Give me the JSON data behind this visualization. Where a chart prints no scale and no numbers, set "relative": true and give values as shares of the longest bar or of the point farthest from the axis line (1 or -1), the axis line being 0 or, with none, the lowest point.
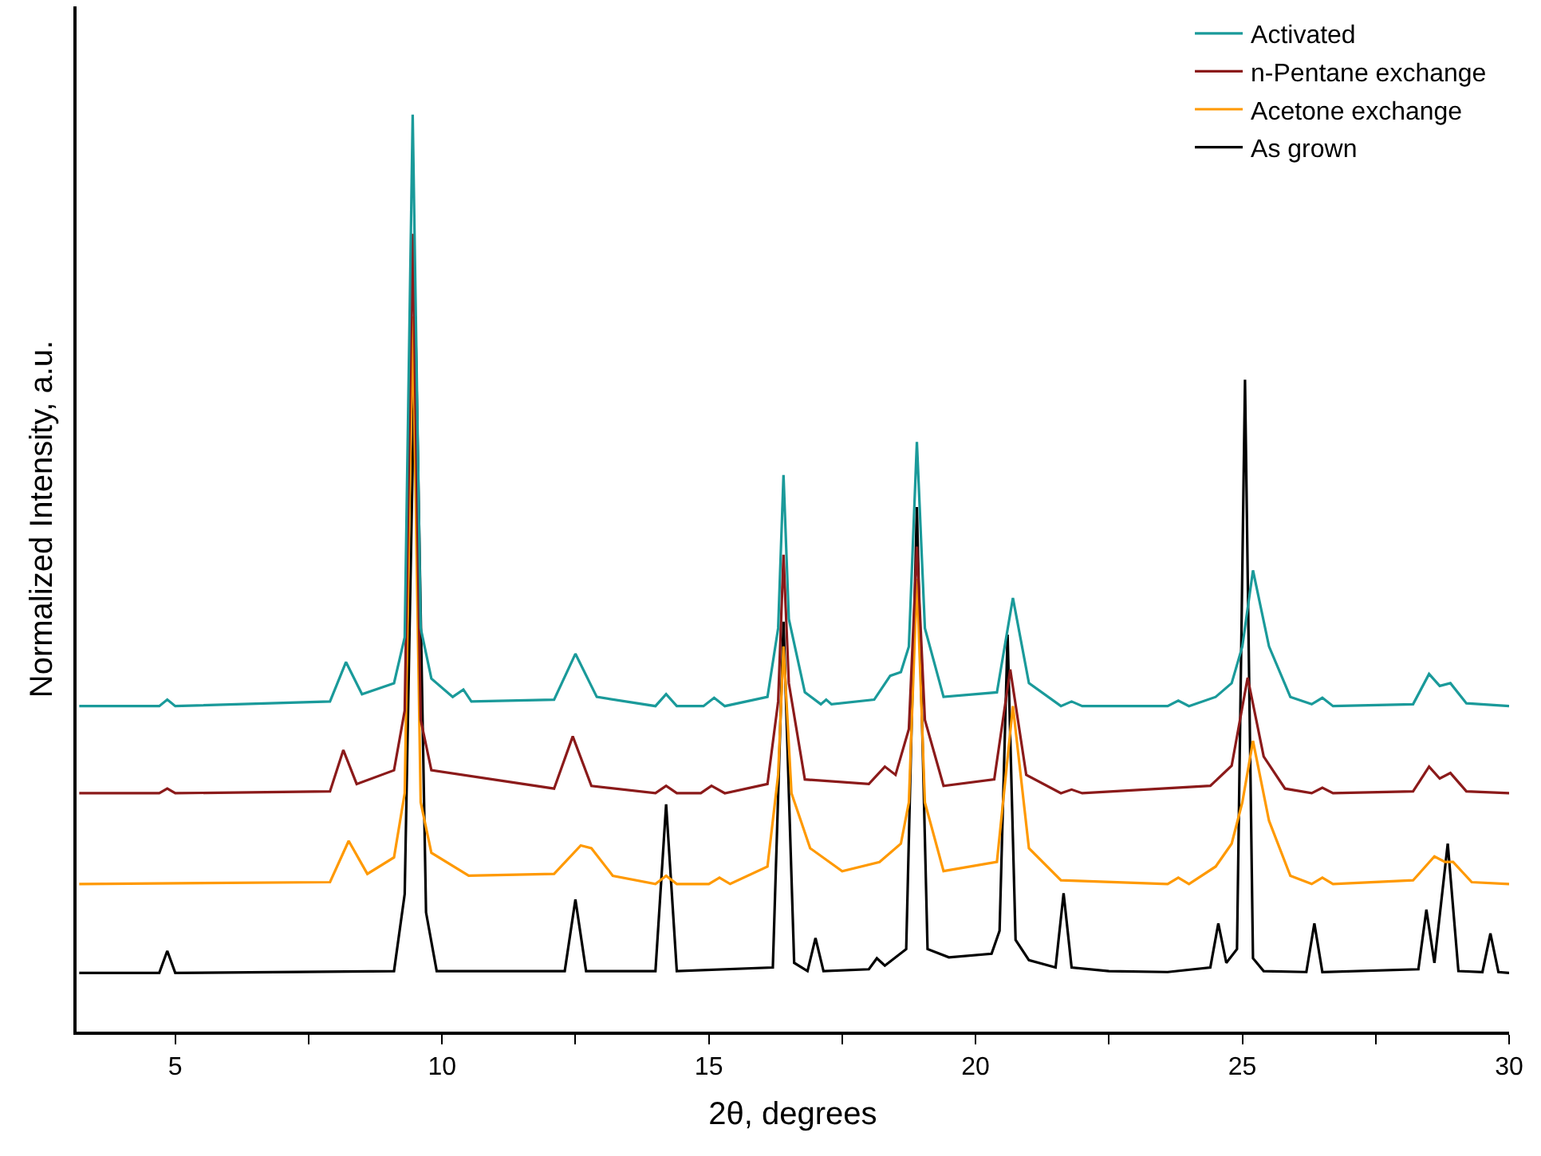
{
  "chart_data": {
    "type": "line",
    "relative": true,
    "xlabel": "2θ, degrees",
    "ylabel": "Normalized Intensity, a.u.",
    "xlim": [
      3.15,
      30
    ],
    "xticks": [
      {
        "value": 5,
        "label": "5"
      },
      {
        "value": 7.5,
        "label": null
      },
      {
        "value": 10,
        "label": "10"
      },
      {
        "value": 12.5,
        "label": null
      },
      {
        "value": 15,
        "label": "15"
      },
      {
        "value": 17.5,
        "label": null
      },
      {
        "value": 20,
        "label": "20"
      },
      {
        "value": 22.5,
        "label": null
      },
      {
        "value": 25,
        "label": "25"
      },
      {
        "value": 27.5,
        "label": null
      },
      {
        "value": 30,
        "label": "30"
      }
    ],
    "tick_labels": "x",
    "legend": "top right",
    "marker": "none",
    "line_style": "solid",
    "series": [
      {
        "name": "Activated",
        "color": "#1a9a9a",
        "x": [
          3.2,
          4.7,
          4.85,
          5.0,
          7.9,
          8.2,
          8.5,
          9.1,
          9.3,
          9.45,
          9.6,
          9.8,
          10.2,
          10.4,
          10.55,
          12.1,
          12.5,
          12.9,
          14.0,
          14.2,
          14.4,
          14.9,
          15.1,
          15.3,
          16.1,
          16.3,
          16.4,
          16.5,
          16.8,
          17.1,
          17.2,
          17.3,
          18.1,
          18.4,
          18.6,
          18.75,
          18.9,
          19.05,
          19.4,
          20.4,
          20.7,
          21.0,
          21.6,
          21.8,
          22.0,
          23.6,
          23.8,
          24.0,
          24.5,
          24.8,
          25.0,
          25.2,
          25.5,
          25.9,
          26.3,
          26.5,
          26.7,
          28.2,
          28.5,
          28.7,
          28.9,
          29.2,
          30
        ],
        "values": [
          0.355,
          0.355,
          0.362,
          0.355,
          0.36,
          0.403,
          0.368,
          0.38,
          0.43,
          1.0,
          0.44,
          0.385,
          0.365,
          0.373,
          0.36,
          0.362,
          0.412,
          0.365,
          0.355,
          0.368,
          0.355,
          0.355,
          0.364,
          0.355,
          0.365,
          0.44,
          0.607,
          0.45,
          0.37,
          0.357,
          0.362,
          0.357,
          0.362,
          0.388,
          0.392,
          0.42,
          0.643,
          0.44,
          0.365,
          0.37,
          0.473,
          0.38,
          0.355,
          0.36,
          0.355,
          0.355,
          0.361,
          0.355,
          0.365,
          0.38,
          0.42,
          0.503,
          0.42,
          0.365,
          0.357,
          0.364,
          0.355,
          0.357,
          0.39,
          0.377,
          0.38,
          0.358,
          0.355
        ]
      },
      {
        "name": "n-Pentane exchange",
        "color": "#8b1a1a",
        "x": [
          3.2,
          4.7,
          4.85,
          5.0,
          7.9,
          8.15,
          8.4,
          9.1,
          9.3,
          9.45,
          9.6,
          9.8,
          12.1,
          12.45,
          12.8,
          14.0,
          14.2,
          14.4,
          14.85,
          15.05,
          15.3,
          16.1,
          16.3,
          16.4,
          16.5,
          16.8,
          18.0,
          18.3,
          18.5,
          18.75,
          18.9,
          19.05,
          19.4,
          20.35,
          20.65,
          20.95,
          21.6,
          21.8,
          22.0,
          24.4,
          24.8,
          25.1,
          25.4,
          25.8,
          26.3,
          26.5,
          26.7,
          28.2,
          28.5,
          28.7,
          28.9,
          29.2,
          30
        ],
        "values": [
          0.26,
          0.26,
          0.265,
          0.26,
          0.262,
          0.307,
          0.27,
          0.285,
          0.35,
          0.87,
          0.34,
          0.285,
          0.265,
          0.322,
          0.268,
          0.26,
          0.268,
          0.26,
          0.26,
          0.268,
          0.26,
          0.27,
          0.36,
          0.52,
          0.38,
          0.275,
          0.27,
          0.289,
          0.28,
          0.33,
          0.529,
          0.34,
          0.268,
          0.275,
          0.395,
          0.28,
          0.26,
          0.264,
          0.26,
          0.268,
          0.29,
          0.386,
          0.3,
          0.265,
          0.26,
          0.266,
          0.26,
          0.262,
          0.289,
          0.276,
          0.282,
          0.262,
          0.26
        ]
      },
      {
        "name": "Acetone exchange",
        "color": "#ff9900",
        "x": [
          3.2,
          7.9,
          8.25,
          8.6,
          9.1,
          9.3,
          9.45,
          9.6,
          9.8,
          10.5,
          12.1,
          12.6,
          12.8,
          13.2,
          14.0,
          14.2,
          14.4,
          15.0,
          15.2,
          15.4,
          16.1,
          16.3,
          16.4,
          16.55,
          16.9,
          17.5,
          18.2,
          18.6,
          18.75,
          18.9,
          19.05,
          19.4,
          20.4,
          20.7,
          21.0,
          21.6,
          23.6,
          23.8,
          24.0,
          24.5,
          24.8,
          25.0,
          25.2,
          25.5,
          25.9,
          26.3,
          26.5,
          26.7,
          28.2,
          28.6,
          28.8,
          28.95,
          29.3,
          30
        ],
        "values": [
          0.161,
          0.163,
          0.208,
          0.172,
          0.19,
          0.26,
          0.78,
          0.25,
          0.195,
          0.17,
          0.172,
          0.203,
          0.2,
          0.17,
          0.161,
          0.17,
          0.161,
          0.161,
          0.168,
          0.161,
          0.18,
          0.28,
          0.42,
          0.26,
          0.2,
          0.175,
          0.185,
          0.205,
          0.25,
          0.494,
          0.25,
          0.175,
          0.185,
          0.355,
          0.2,
          0.165,
          0.161,
          0.168,
          0.161,
          0.18,
          0.205,
          0.25,
          0.317,
          0.23,
          0.17,
          0.161,
          0.168,
          0.161,
          0.165,
          0.191,
          0.185,
          0.185,
          0.163,
          0.161
        ]
      },
      {
        "name": "As grown",
        "color": "#000000",
        "x": [
          3.2,
          4.7,
          4.85,
          5.0,
          9.1,
          9.3,
          9.5,
          9.7,
          9.9,
          12.3,
          12.5,
          12.7,
          14.0,
          14.2,
          14.4,
          16.2,
          16.4,
          16.6,
          16.85,
          17.0,
          17.15,
          18.0,
          18.15,
          18.3,
          18.7,
          18.9,
          19.1,
          19.5,
          20.3,
          20.45,
          20.6,
          20.75,
          21.0,
          21.5,
          21.65,
          21.8,
          22.5,
          23.6,
          24.4,
          24.55,
          24.7,
          24.9,
          25.05,
          25.2,
          25.4,
          26.2,
          26.35,
          26.5,
          28.3,
          28.45,
          28.6,
          28.85,
          29.05,
          29.5,
          29.65,
          29.8,
          30
        ],
        "values": [
          0.064,
          0.064,
          0.088,
          0.064,
          0.066,
          0.15,
          0.78,
          0.13,
          0.066,
          0.066,
          0.144,
          0.066,
          0.066,
          0.248,
          0.066,
          0.07,
          0.447,
          0.075,
          0.066,
          0.102,
          0.066,
          0.068,
          0.08,
          0.072,
          0.09,
          0.572,
          0.09,
          0.081,
          0.085,
          0.11,
          0.433,
          0.1,
          0.078,
          0.07,
          0.151,
          0.07,
          0.066,
          0.065,
          0.07,
          0.118,
          0.075,
          0.09,
          0.711,
          0.08,
          0.066,
          0.065,
          0.118,
          0.065,
          0.068,
          0.133,
          0.075,
          0.205,
          0.066,
          0.065,
          0.107,
          0.065,
          0.064
        ]
      }
    ]
  }
}
